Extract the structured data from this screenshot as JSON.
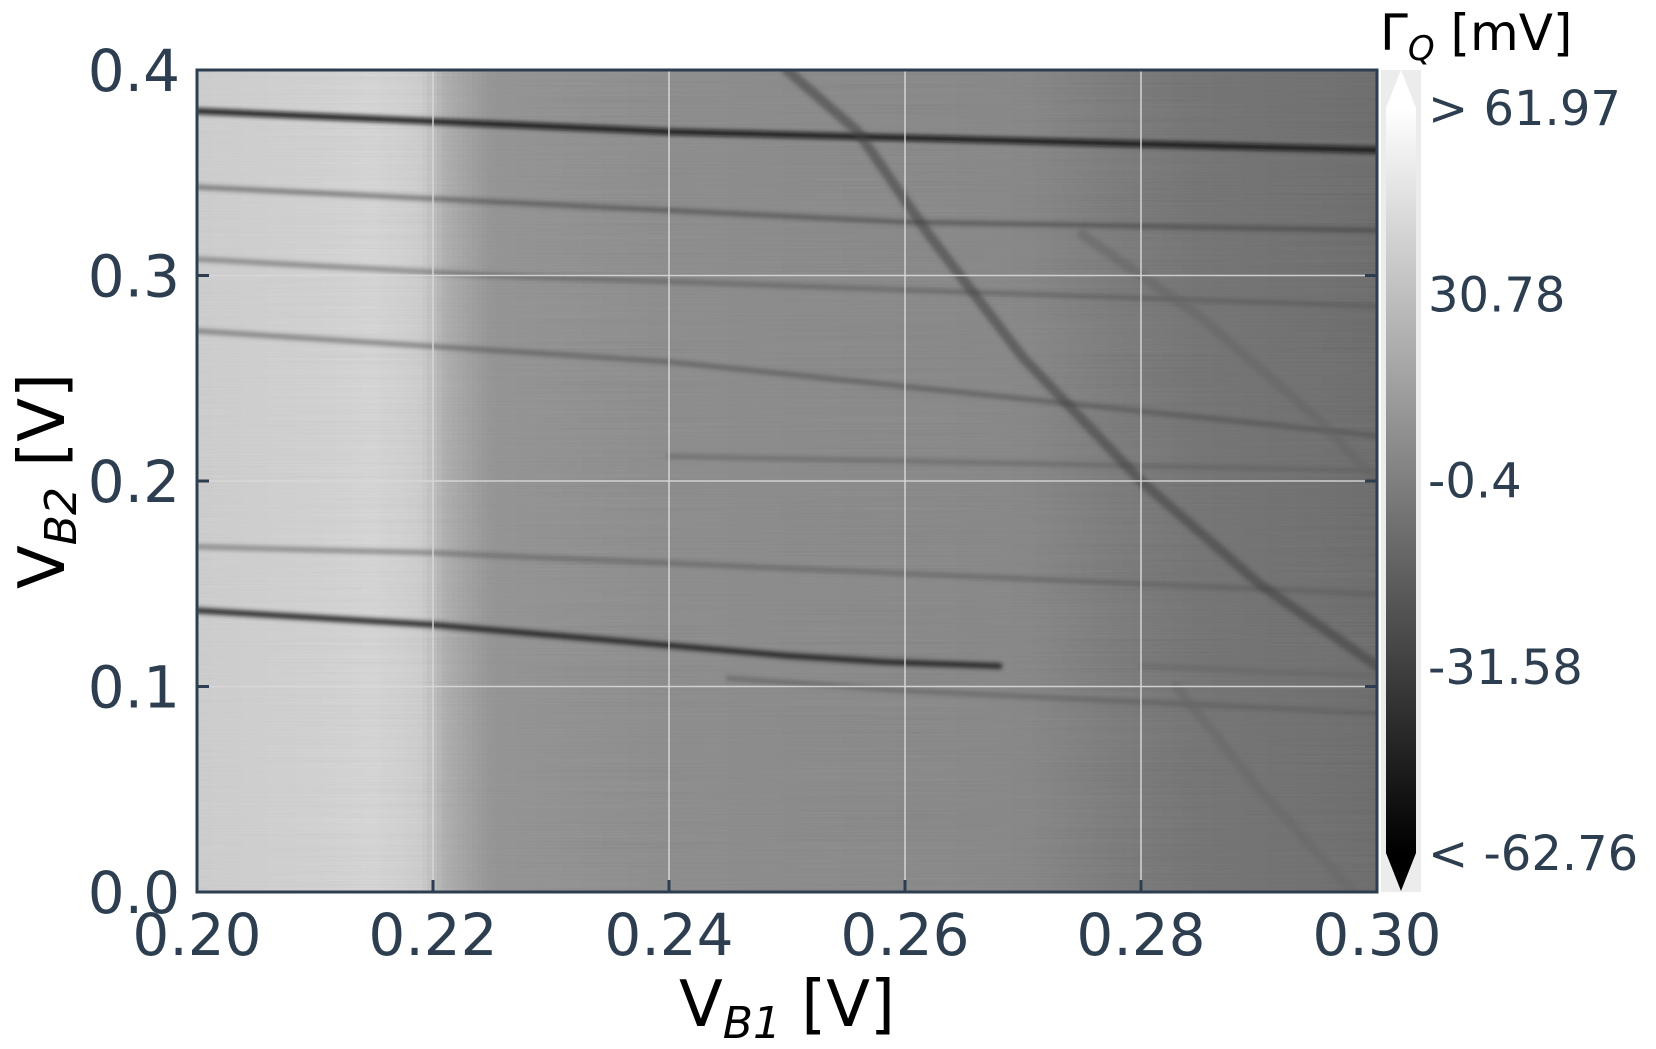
{
  "chart_data": {
    "type": "heatmap",
    "xlabel": {
      "main": "V",
      "sub": "B1",
      "unit": " [V]"
    },
    "ylabel": {
      "main": "V",
      "sub": "B2",
      "unit": " [V]"
    },
    "xlim": [
      0.2,
      0.3
    ],
    "ylim": [
      0.0,
      0.4
    ],
    "x_ticks": [
      "0.20",
      "0.22",
      "0.24",
      "0.26",
      "0.28",
      "0.30"
    ],
    "x_tick_values": [
      0.2,
      0.22,
      0.24,
      0.26,
      0.28,
      0.3
    ],
    "y_ticks": [
      "0.0",
      "0.1",
      "0.2",
      "0.3",
      "0.4"
    ],
    "y_tick_values": [
      0.0,
      0.1,
      0.2,
      0.3,
      0.4
    ],
    "grid": true,
    "colormap": "gray",
    "colorbar": {
      "title": {
        "main": "Γ",
        "sub": "Q",
        "unit": " [mV]"
      },
      "vmin": -62.76,
      "vmax": 61.97,
      "ticks": [
        "> 61.97",
        "30.78",
        "-0.4",
        "-31.58",
        "< -62.76"
      ],
      "tick_values": [
        61.97,
        30.78,
        -0.4,
        -31.58,
        -62.76
      ],
      "extend": "both"
    },
    "background_profile": {
      "x": [
        0.2,
        0.21,
        0.215,
        0.219,
        0.221,
        0.225,
        0.24,
        0.26,
        0.27,
        0.278,
        0.285,
        0.295,
        0.3
      ],
      "value": [
        38,
        40,
        42,
        38,
        22,
        8,
        4,
        2,
        1,
        -5,
        -9,
        -11,
        -13
      ]
    },
    "features": [
      {
        "name": "transition-line-1",
        "x": [
          0.2,
          0.24,
          0.3
        ],
        "y": [
          0.38,
          0.37,
          0.361
        ],
        "depth": -55
      },
      {
        "name": "transition-line-2",
        "x": [
          0.2,
          0.26,
          0.3
        ],
        "y": [
          0.343,
          0.326,
          0.322
        ],
        "depth": -35
      },
      {
        "name": "transition-line-3",
        "x": [
          0.2,
          0.225,
          0.3
        ],
        "y": [
          0.308,
          0.3,
          0.285
        ],
        "depth": -22
      },
      {
        "name": "transition-line-4",
        "x": [
          0.2,
          0.24,
          0.27,
          0.3
        ],
        "y": [
          0.273,
          0.258,
          0.24,
          0.222
        ],
        "depth": -28
      },
      {
        "name": "transition-line-5",
        "x": [
          0.24,
          0.3
        ],
        "y": [
          0.212,
          0.205
        ],
        "depth": -18
      },
      {
        "name": "transition-line-6",
        "x": [
          0.2,
          0.22,
          0.26,
          0.3
        ],
        "y": [
          0.168,
          0.165,
          0.155,
          0.145
        ],
        "depth": -20
      },
      {
        "name": "transition-line-7",
        "x": [
          0.2,
          0.22,
          0.25,
          0.258,
          0.268
        ],
        "y": [
          0.137,
          0.13,
          0.115,
          0.112,
          0.11
        ],
        "depth": -45
      },
      {
        "name": "transition-line-8",
        "x": [
          0.245,
          0.26,
          0.3
        ],
        "y": [
          0.104,
          0.098,
          0.087
        ],
        "depth": -20
      },
      {
        "name": "transition-line-9",
        "x": [
          0.28,
          0.3
        ],
        "y": [
          0.11,
          0.105
        ],
        "depth": -16
      },
      {
        "name": "diagonal-line-1",
        "x": [
          0.25,
          0.256,
          0.262,
          0.27,
          0.28,
          0.29,
          0.3
        ],
        "y": [
          0.4,
          0.37,
          0.32,
          0.26,
          0.2,
          0.15,
          0.11
        ],
        "depth": -32
      },
      {
        "name": "diagonal-line-2",
        "x": [
          0.275,
          0.285,
          0.295,
          0.3
        ],
        "y": [
          0.32,
          0.28,
          0.23,
          0.2
        ],
        "depth": -14
      },
      {
        "name": "diagonal-line-3",
        "x": [
          0.283,
          0.29,
          0.298
        ],
        "y": [
          0.1,
          0.05,
          0.0
        ],
        "depth": -12
      }
    ]
  }
}
